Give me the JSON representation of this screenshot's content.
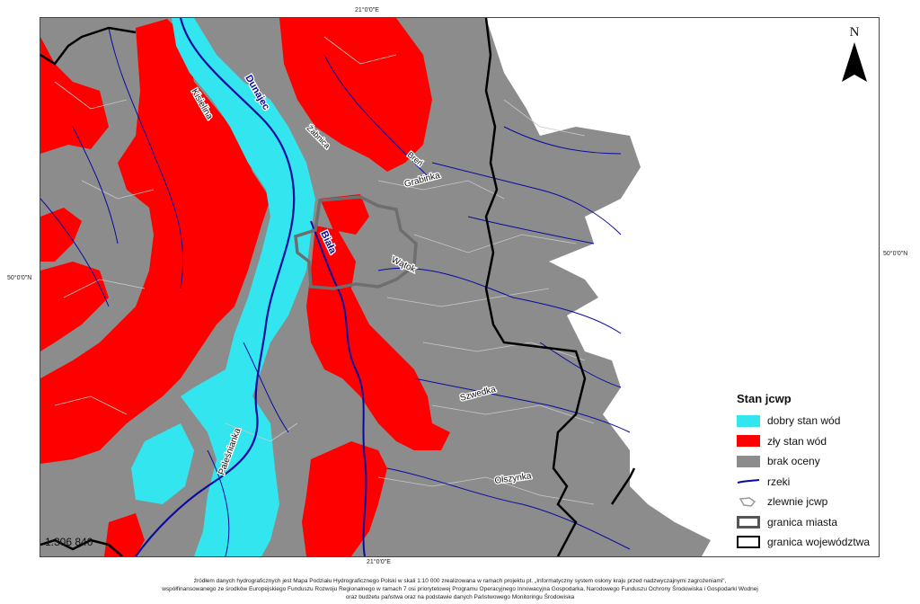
{
  "coordinates": {
    "top": "21°0'0\"E",
    "bottom": "21°0'0\"E",
    "left": "50°0'0\"N",
    "right": "50°0'0\"N"
  },
  "north_arrow": {
    "label": "N"
  },
  "scale": "1:306 840",
  "rivers": {
    "dunajec": "Dunajec",
    "kisielina": "Kisielina",
    "zabnica": "Żabnica",
    "breń": "Breń",
    "grabinka": "Grabinka",
    "biala": "Biała",
    "watok": "Wątok",
    "szwedka": "Szwedka",
    "olszynka": "Olszynka",
    "palesnianka": "Paleśnianka"
  },
  "legend": {
    "title": "Stan jcwp",
    "items": [
      {
        "label": "dobry stan wód",
        "color": "#33e5ef",
        "kind": "fill"
      },
      {
        "label": "zły stan wód",
        "color": "#ff0000",
        "kind": "fill"
      },
      {
        "label": "brak oceny",
        "color": "#8c8c8c",
        "kind": "fill"
      },
      {
        "label": "rzeki",
        "color": "#0a0aa0",
        "kind": "line"
      },
      {
        "label": "zlewnie jcwp",
        "color": "#9a9a9a",
        "kind": "outline"
      },
      {
        "label": "granica miasta",
        "color": "#555555",
        "kind": "box-thick"
      },
      {
        "label": "granica województwa",
        "color": "#000000",
        "kind": "box"
      }
    ]
  },
  "colors": {
    "good": "#33e5ef",
    "bad": "#ff0000",
    "none": "#8c8c8c",
    "river": "#0a0aa0",
    "catchment": "#bdbdbd"
  },
  "footer": [
    "źródłem danych hydrograficznych jest Mapa Podziału Hydrograficznego Polski w skali 1:10 000 zrealizowana w ramach projektu pt. „Informatyczny system osłony kraju przed nadzwyczajnymi zagrożeniami\",",
    "współfinansowanego ze środków Europejskiego Funduszu Rozwoju Regionalnego w ramach 7 osi priorytetowej Programu Operacyjnego Innowacyjna Gospodarka, Narodowego Funduszu Ochrony Środowiska i Gospodarki Wodnej",
    "oraz budżetu państwa oraz na podstawie danych Państwowego Monitoringu Środowiska"
  ]
}
